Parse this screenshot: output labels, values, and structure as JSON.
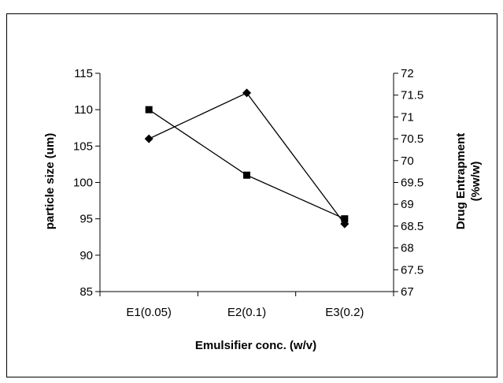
{
  "chart_data": {
    "type": "line",
    "title": "",
    "xlabel": "Emulsifier conc. (w/v)",
    "ylabel": "particle size (um)",
    "y2label_line1": "Drug Entrapment",
    "y2label_line2": "(%w/w)",
    "categories": [
      "E1(0.05)",
      "E2(0.1)",
      "E3(0.2)"
    ],
    "ylim": [
      85,
      115
    ],
    "yticks": [
      85,
      90,
      95,
      100,
      105,
      110,
      115
    ],
    "y2lim": [
      67,
      72
    ],
    "y2ticks": [
      "67",
      "67.5",
      "68",
      "68.5",
      "69",
      "69.5",
      "70",
      "70.5",
      "71",
      "71.5",
      "72"
    ],
    "grid": false,
    "legend": "none",
    "series": [
      {
        "marker": "square",
        "axis": "left",
        "values": [
          110,
          101,
          95
        ],
        "color": "#000000"
      },
      {
        "marker": "diamond",
        "axis": "right",
        "values": [
          70.5,
          71.55,
          68.55
        ],
        "color": "#000000"
      }
    ]
  }
}
